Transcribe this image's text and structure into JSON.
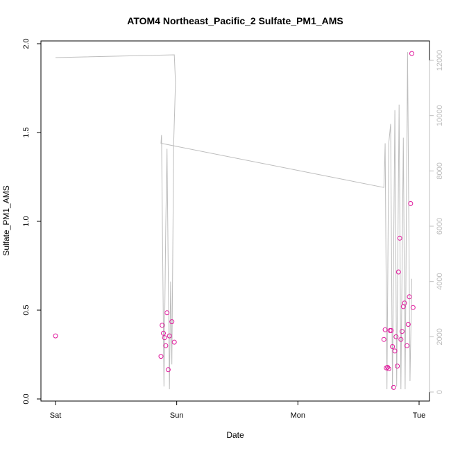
{
  "chart_data": {
    "type": "scatter",
    "title": "ATOM4 Northeast_Pacific_2 Sulfate_PM1_AMS",
    "xlabel": "Date",
    "ylabel": "Sulfate_PM1_AMS",
    "x_ticks": [
      "Sat",
      "Sun",
      "Mon",
      "Tue"
    ],
    "xlim_days": [
      -0.05,
      3.08
    ],
    "ylim": [
      0,
      2.0
    ],
    "y_ticks": [
      "0.0",
      "0.5",
      "1.0",
      "1.5",
      "2.0"
    ],
    "y2lim": [
      0,
      12800
    ],
    "y2_ticks": [
      "0",
      "2000",
      "4000",
      "6000",
      "8000",
      "10000",
      "12000"
    ],
    "colors": {
      "points": "#e0189c",
      "line": "#bdbdbd"
    },
    "points": [
      {
        "x": 0.0,
        "y": 0.355
      },
      {
        "x": 0.87,
        "y": 0.24
      },
      {
        "x": 0.88,
        "y": 0.415
      },
      {
        "x": 0.89,
        "y": 0.37
      },
      {
        "x": 0.9,
        "y": 0.345
      },
      {
        "x": 0.91,
        "y": 0.3
      },
      {
        "x": 0.92,
        "y": 0.485
      },
      {
        "x": 0.93,
        "y": 0.165
      },
      {
        "x": 0.94,
        "y": 0.355
      },
      {
        "x": 0.96,
        "y": 0.435
      },
      {
        "x": 0.98,
        "y": 0.32
      },
      {
        "x": 2.71,
        "y": 0.335
      },
      {
        "x": 2.72,
        "y": 0.39
      },
      {
        "x": 2.73,
        "y": 0.175
      },
      {
        "x": 2.74,
        "y": 0.178
      },
      {
        "x": 2.75,
        "y": 0.17
      },
      {
        "x": 2.76,
        "y": 0.385
      },
      {
        "x": 2.77,
        "y": 0.385
      },
      {
        "x": 2.78,
        "y": 0.295
      },
      {
        "x": 2.79,
        "y": 0.065
      },
      {
        "x": 2.8,
        "y": 0.27
      },
      {
        "x": 2.81,
        "y": 0.35
      },
      {
        "x": 2.82,
        "y": 0.185
      },
      {
        "x": 2.83,
        "y": 0.715
      },
      {
        "x": 2.84,
        "y": 0.905
      },
      {
        "x": 2.85,
        "y": 0.335
      },
      {
        "x": 2.86,
        "y": 0.38
      },
      {
        "x": 2.87,
        "y": 0.52
      },
      {
        "x": 2.88,
        "y": 0.54
      },
      {
        "x": 2.9,
        "y": 0.3
      },
      {
        "x": 2.91,
        "y": 0.42
      },
      {
        "x": 2.92,
        "y": 0.575
      },
      {
        "x": 2.93,
        "y": 1.1
      },
      {
        "x": 2.94,
        "y": 1.945
      },
      {
        "x": 2.95,
        "y": 0.515
      }
    ],
    "line_series": [
      {
        "x": 0.0,
        "y2": 12100
      },
      {
        "x": 0.98,
        "y2": 12200
      },
      {
        "x": 0.99,
        "y2": 11200
      },
      {
        "x": 0.975,
        "y2": 9000
      },
      {
        "x": 0.96,
        "y2": 1000
      },
      {
        "x": 0.95,
        "y2": 4000
      },
      {
        "x": 0.94,
        "y2": 100
      },
      {
        "x": 0.92,
        "y2": 8800
      },
      {
        "x": 0.91,
        "y2": 6000
      },
      {
        "x": 0.895,
        "y2": 200
      },
      {
        "x": 0.875,
        "y2": 9300
      },
      {
        "x": 0.87,
        "y2": 9000
      },
      {
        "x": 2.71,
        "y2": 7400
      },
      {
        "x": 2.72,
        "y2": 9000
      },
      {
        "x": 2.735,
        "y2": 100
      },
      {
        "x": 2.75,
        "y2": 9000
      },
      {
        "x": 2.765,
        "y2": 9700
      },
      {
        "x": 2.78,
        "y2": 100
      },
      {
        "x": 2.8,
        "y2": 10200
      },
      {
        "x": 2.815,
        "y2": 200
      },
      {
        "x": 2.835,
        "y2": 10400
      },
      {
        "x": 2.85,
        "y2": 100
      },
      {
        "x": 2.87,
        "y2": 9200
      },
      {
        "x": 2.885,
        "y2": 100
      },
      {
        "x": 2.905,
        "y2": 12300
      },
      {
        "x": 2.925,
        "y2": 400
      },
      {
        "x": 2.94,
        "y2": 4100
      }
    ]
  }
}
